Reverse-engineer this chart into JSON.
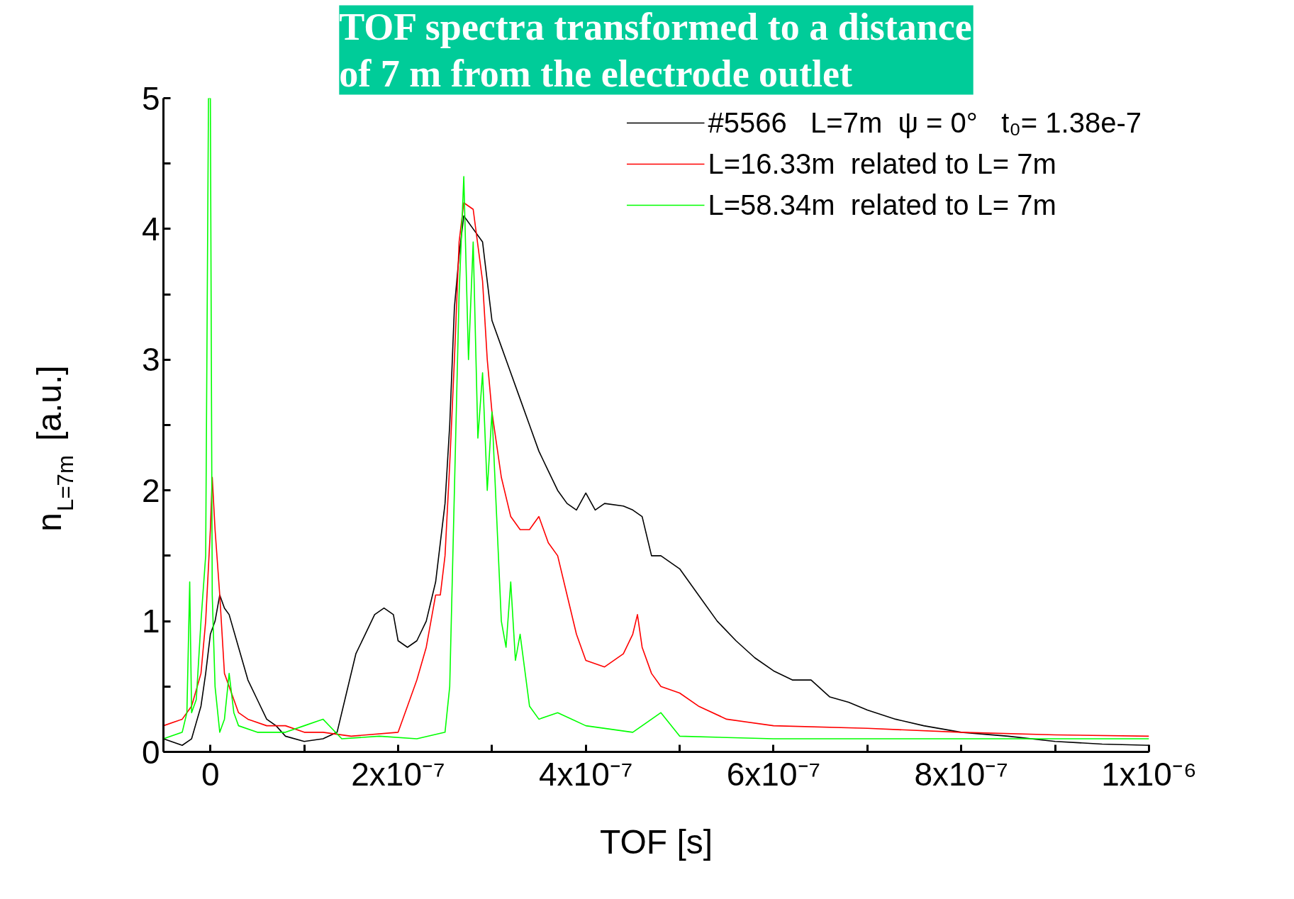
{
  "chart_data": {
    "type": "line",
    "title": "TOF spectra transformed to a distance\nof 7 m from the electrode outlet",
    "xlabel": "TOF [s]",
    "ylabel": "n$_{L=7m}$ [a.u.]",
    "xlim": [
      -5e-08,
      1e-06
    ],
    "ylim": [
      0,
      5
    ],
    "xticks": [
      {
        "value": 0,
        "label": "0"
      },
      {
        "value": 1e-07,
        "label": null
      },
      {
        "value": 2e-07,
        "label": "2x10⁻⁷"
      },
      {
        "value": 3e-07,
        "label": null
      },
      {
        "value": 4e-07,
        "label": "4x10⁻⁷"
      },
      {
        "value": 5e-07,
        "label": null
      },
      {
        "value": 6e-07,
        "label": "6x10⁻⁷"
      },
      {
        "value": 7e-07,
        "label": null
      },
      {
        "value": 8e-07,
        "label": "8x10⁻⁷"
      },
      {
        "value": 9e-07,
        "label": null
      },
      {
        "value": 1e-06,
        "label": "1x10⁻⁶"
      }
    ],
    "yticks": [
      0,
      {
        "value": 0.5,
        "label": null
      },
      1,
      {
        "value": 1.5,
        "label": null
      },
      2,
      {
        "value": 2.5,
        "label": null
      },
      3,
      {
        "value": 3.5,
        "label": null
      },
      4,
      {
        "value": 4.5,
        "label": null
      },
      5
    ],
    "grid": false,
    "legend": "top right",
    "marker": "none",
    "line_style": "solid",
    "series": [
      {
        "name": "#5566   L=7m  ψ = 0°   t₀= 1.38e-7",
        "color": "#000000",
        "x": [
          -5e-08,
          -3e-08,
          -2e-08,
          -1e-08,
          -5e-09,
          0,
          5e-09,
          1e-08,
          1.5e-08,
          2e-08,
          3e-08,
          4e-08,
          5e-08,
          6e-08,
          7e-08,
          8e-08,
          1e-07,
          1.2e-07,
          1.35e-07,
          1.45e-07,
          1.55e-07,
          1.65e-07,
          1.75e-07,
          1.85e-07,
          1.95e-07,
          2e-07,
          2.1e-07,
          2.2e-07,
          2.3e-07,
          2.4e-07,
          2.5e-07,
          2.55e-07,
          2.6e-07,
          2.65e-07,
          2.7e-07,
          2.8e-07,
          2.9e-07,
          3e-07,
          3.1e-07,
          3.2e-07,
          3.3e-07,
          3.4e-07,
          3.5e-07,
          3.6e-07,
          3.7e-07,
          3.8e-07,
          3.9e-07,
          4e-07,
          4.1e-07,
          4.2e-07,
          4.4e-07,
          4.5e-07,
          4.6e-07,
          4.7e-07,
          4.8e-07,
          5e-07,
          5.2e-07,
          5.4e-07,
          5.6e-07,
          5.8e-07,
          6e-07,
          6.2e-07,
          6.4e-07,
          6.6e-07,
          6.8e-07,
          7e-07,
          7.3e-07,
          7.6e-07,
          8e-07,
          8.5e-07,
          9e-07,
          9.5e-07,
          1e-06
        ],
        "values": [
          0.1,
          0.05,
          0.1,
          0.35,
          0.6,
          0.9,
          1.0,
          1.2,
          1.1,
          1.05,
          0.8,
          0.55,
          0.4,
          0.25,
          0.2,
          0.12,
          0.08,
          0.1,
          0.15,
          0.45,
          0.75,
          0.9,
          1.05,
          1.1,
          1.05,
          0.85,
          0.8,
          0.85,
          1.0,
          1.3,
          1.9,
          2.5,
          3.4,
          3.8,
          4.1,
          4.0,
          3.9,
          3.3,
          3.1,
          2.9,
          2.7,
          2.5,
          2.3,
          2.15,
          2.0,
          1.9,
          1.85,
          1.98,
          1.85,
          1.9,
          1.88,
          1.85,
          1.8,
          1.5,
          1.5,
          1.4,
          1.2,
          1.0,
          0.85,
          0.72,
          0.62,
          0.55,
          0.55,
          0.42,
          0.38,
          0.32,
          0.25,
          0.2,
          0.15,
          0.12,
          0.08,
          0.06,
          0.05
        ]
      },
      {
        "name": "L=16.33m  related to L= 7m",
        "color": "#ff0000",
        "x": [
          -5e-08,
          -3e-08,
          -2e-08,
          -1e-08,
          -5e-09,
          0,
          2e-09,
          5e-09,
          1e-08,
          1.5e-08,
          2e-08,
          3e-08,
          4e-08,
          6e-08,
          8e-08,
          1e-07,
          1.2e-07,
          1.5e-07,
          2e-07,
          2.1e-07,
          2.2e-07,
          2.3e-07,
          2.35e-07,
          2.4e-07,
          2.45e-07,
          2.5e-07,
          2.55e-07,
          2.6e-07,
          2.65e-07,
          2.7e-07,
          2.8e-07,
          2.9e-07,
          2.95e-07,
          3e-07,
          3.1e-07,
          3.2e-07,
          3.3e-07,
          3.4e-07,
          3.5e-07,
          3.6e-07,
          3.7e-07,
          3.8e-07,
          3.9e-07,
          4e-07,
          4.2e-07,
          4.4e-07,
          4.5e-07,
          4.55e-07,
          4.6e-07,
          4.7e-07,
          4.8e-07,
          5e-07,
          5.2e-07,
          5.5e-07,
          6e-07,
          7e-07,
          8e-07,
          9e-07,
          1e-06
        ],
        "values": [
          0.2,
          0.25,
          0.35,
          0.6,
          1.0,
          1.7,
          2.1,
          1.7,
          1.2,
          0.6,
          0.5,
          0.3,
          0.25,
          0.2,
          0.2,
          0.15,
          0.15,
          0.12,
          0.15,
          0.35,
          0.55,
          0.8,
          1.0,
          1.2,
          1.2,
          1.5,
          2.2,
          3.0,
          3.9,
          4.2,
          4.15,
          3.6,
          3.0,
          2.6,
          2.1,
          1.8,
          1.7,
          1.7,
          1.8,
          1.6,
          1.5,
          1.2,
          0.9,
          0.7,
          0.65,
          0.75,
          0.9,
          1.05,
          0.8,
          0.6,
          0.5,
          0.45,
          0.35,
          0.25,
          0.2,
          0.18,
          0.15,
          0.13,
          0.12
        ]
      },
      {
        "name": "L=58.34m  related to L= 7m",
        "color": "#00ff00",
        "x": [
          -5e-08,
          -3e-08,
          -2.5e-08,
          -2.2e-08,
          -2e-08,
          -1.5e-08,
          -1e-08,
          -5e-09,
          -2e-09,
          0,
          2e-09,
          5e-09,
          1e-08,
          1.5e-08,
          2e-08,
          2.5e-08,
          3e-08,
          5e-08,
          8e-08,
          1e-07,
          1.2e-07,
          1.4e-07,
          1.8e-07,
          2.2e-07,
          2.5e-07,
          2.55e-07,
          2.6e-07,
          2.65e-07,
          2.7e-07,
          2.75e-07,
          2.8e-07,
          2.85e-07,
          2.9e-07,
          2.95e-07,
          3e-07,
          3.05e-07,
          3.1e-07,
          3.15e-07,
          3.2e-07,
          3.25e-07,
          3.3e-07,
          3.4e-07,
          3.5e-07,
          3.7e-07,
          4e-07,
          4.5e-07,
          4.8e-07,
          5e-07,
          6e-07,
          7e-07,
          8e-07,
          9e-07,
          1e-06
        ],
        "values": [
          0.1,
          0.15,
          0.3,
          1.3,
          0.3,
          0.4,
          1.0,
          1.5,
          5.0,
          5.0,
          1.2,
          0.5,
          0.15,
          0.25,
          0.6,
          0.3,
          0.2,
          0.15,
          0.15,
          0.2,
          0.25,
          0.1,
          0.12,
          0.1,
          0.15,
          0.5,
          2.0,
          3.5,
          4.4,
          3.0,
          3.9,
          2.4,
          2.9,
          2.0,
          2.6,
          1.8,
          1.0,
          0.8,
          1.3,
          0.7,
          0.9,
          0.35,
          0.25,
          0.3,
          0.2,
          0.15,
          0.3,
          0.12,
          0.1,
          0.1,
          0.1,
          0.1,
          0.1
        ]
      }
    ]
  }
}
